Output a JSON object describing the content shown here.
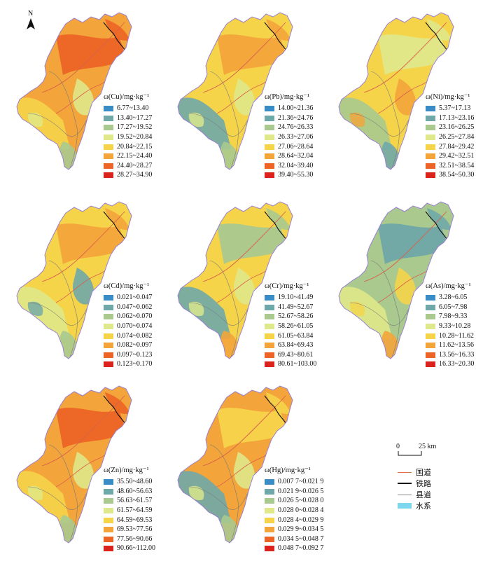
{
  "north": {
    "label": "N"
  },
  "panels": [
    {
      "id": "cu",
      "title": "ω(Cu)/mg·kg⁻¹",
      "items": [
        "6.77~13.40",
        "13.40~17.27",
        "17.27~19.52",
        "19.52~20.84",
        "20.84~22.15",
        "22.15~24.40",
        "24.40~28.27",
        "28.27~34.90"
      ],
      "dominant": [
        5,
        6,
        4,
        3,
        2
      ]
    },
    {
      "id": "pb",
      "title": "ω(Pb)/mg·kg⁻¹",
      "items": [
        "14.00~21.36",
        "21.36~24.76",
        "24.76~26.33",
        "26.33~27.06",
        "27.06~28.64",
        "28.64~32.04",
        "32.04~39.40",
        "39.40~55.30"
      ],
      "dominant": [
        4,
        5,
        1,
        3,
        2
      ]
    },
    {
      "id": "ni",
      "title": "ω(Ni)/mg·kg⁻¹",
      "items": [
        "5.37~17.13",
        "17.13~23.16",
        "23.16~26.25",
        "26.25~27.84",
        "27.84~29.42",
        "29.42~32.51",
        "32.51~38.54",
        "38.54~50.30"
      ],
      "dominant": [
        4,
        3,
        2,
        5,
        1
      ]
    },
    {
      "id": "cd",
      "title": "ω(Cd)/mg·kg⁻¹",
      "items": [
        "0.021~0.047",
        "0.047~0.062",
        "0.062~0.070",
        "0.070~0.074",
        "0.074~0.082",
        "0.082~0.097",
        "0.097~0.123",
        "0.123~0.170"
      ],
      "dominant": [
        4,
        5,
        3,
        1,
        2
      ]
    },
    {
      "id": "cr",
      "title": "ω(Cr)/mg·kg⁻¹",
      "items": [
        "19.10~41.49",
        "41.49~52.67",
        "52.67~58.26",
        "58.26~61.05",
        "61.05~63.84",
        "63.84~69.43",
        "69.43~80.61",
        "80.61~103.00"
      ],
      "dominant": [
        4,
        2,
        1,
        3,
        5
      ]
    },
    {
      "id": "as",
      "title": "ω(As)/mg·kg⁻¹",
      "items": [
        "3.28~6.05",
        "6.05~7.98",
        "7.98~9.33",
        "9.33~10.28",
        "10.28~11.62",
        "11.62~13.56",
        "13.56~16.33",
        "16.33~20.30"
      ],
      "dominant": [
        2,
        1,
        3,
        4,
        5
      ]
    },
    {
      "id": "zn",
      "title": "ω(Zn)/mg·kg⁻¹",
      "items": [
        "35.50~48.60",
        "48.60~56.63",
        "56.63~61.57",
        "61.57~64.59",
        "64.59~69.53",
        "69.53~77.56",
        "77.56~90.66",
        "90.66~112.00"
      ],
      "dominant": [
        5,
        6,
        4,
        3,
        2
      ]
    },
    {
      "id": "hg",
      "title": "ω(Hg)/mg·kg⁻¹",
      "items": [
        "0.007 7~0.021 9",
        "0.021 9~0.026 5",
        "0.026 5~0.028 0",
        "0.028 0~0.028 4",
        "0.028 4~0.029 9",
        "0.029 9~0.034 5",
        "0.034 5~0.048 7",
        "0.048 7~0.092 7"
      ],
      "dominant": [
        5,
        4,
        1,
        3,
        2
      ]
    }
  ],
  "colors": [
    "#3a8cc6",
    "#6fa8a8",
    "#a9c98f",
    "#dfe88a",
    "#f5d44a",
    "#f3a43a",
    "#ec6526",
    "#d9231c"
  ],
  "scale": {
    "zero": "0",
    "dist": "25 km"
  },
  "key": [
    {
      "label": "国道",
      "color": "#e07050",
      "type": "line"
    },
    {
      "label": "铁路",
      "color": "#111111",
      "type": "rail"
    },
    {
      "label": "县道",
      "color": "#888888",
      "type": "line"
    },
    {
      "label": "水系",
      "color": "#7fd6ef",
      "type": "box"
    }
  ]
}
